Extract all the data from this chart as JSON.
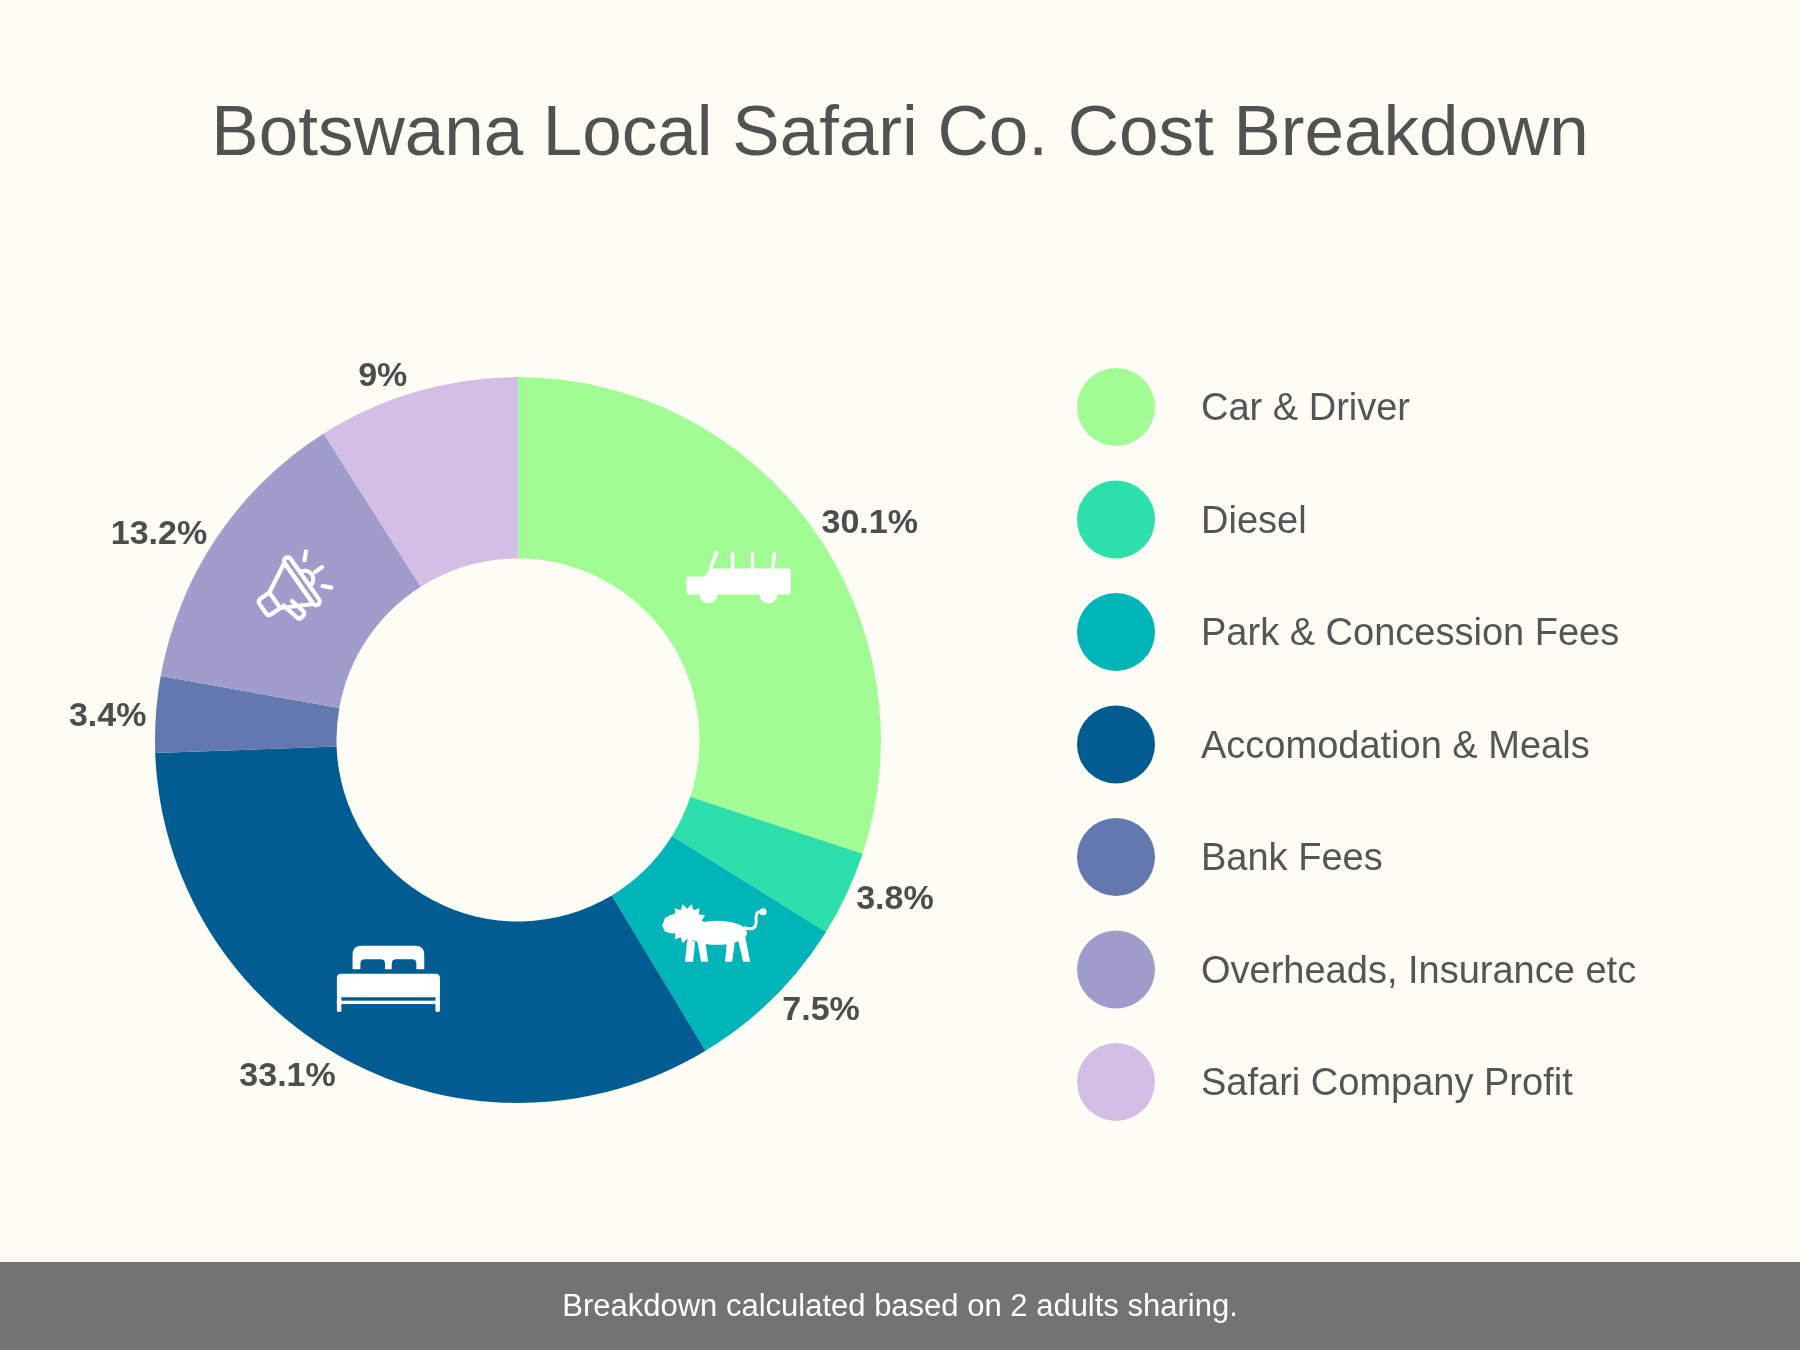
{
  "chart_data": {
    "type": "donut",
    "title": "Botswana Local Safari Co. Cost Breakdown",
    "categories": [
      "Car & Driver",
      "Diesel",
      "Park & Concession Fees",
      "Accomodation & Meals",
      "Bank Fees",
      "Overheads, Insurance etc",
      "Safari Company Profit"
    ],
    "values": [
      30.1,
      3.8,
      7.5,
      33.1,
      3.4,
      13.2,
      9
    ],
    "value_labels": [
      "30.1%",
      "3.8%",
      "7.5%",
      "33.1%",
      "3.4%",
      "13.2%",
      "9%"
    ],
    "colors": [
      "#a1fd93",
      "#2ddfab",
      "#00b5b8",
      "#005c91",
      "#6478b0",
      "#a09dcc",
      "#d3bfe5"
    ],
    "legend": "right",
    "annotations": [
      "Breakdown calculated based on 2 adults sharing."
    ]
  }
}
